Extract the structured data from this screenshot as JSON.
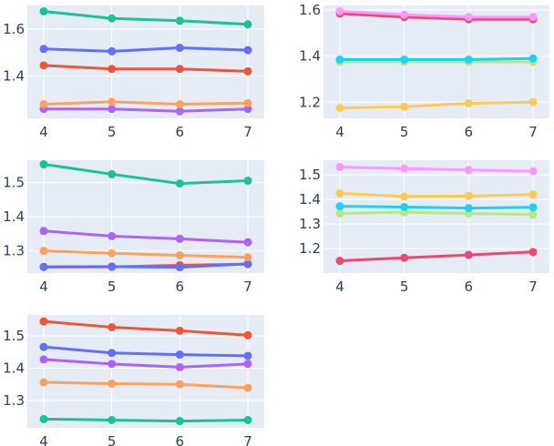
{
  "colors": {
    "background": "#ffffff",
    "plot_bg": "#e5ecf6",
    "grid": "#ffffff",
    "tick_text": "#2a3f5f"
  },
  "chart_data": [
    {
      "type": "line",
      "x": [
        4,
        5,
        6,
        7
      ],
      "ylim": [
        1.22,
        1.7
      ],
      "yticks": [
        1.4,
        1.6
      ],
      "ytick_labels": [
        "1.4",
        "1.6"
      ],
      "xtick_labels": [
        "4",
        "5",
        "6",
        "7"
      ],
      "series": [
        {
          "color": "#19c39a",
          "values": [
            1.675,
            1.645,
            1.635,
            1.62
          ]
        },
        {
          "color": "#636efa",
          "values": [
            1.515,
            1.505,
            1.52,
            1.51
          ]
        },
        {
          "color": "#ef553b",
          "values": [
            1.445,
            1.43,
            1.43,
            1.42
          ]
        },
        {
          "color": "#ffa15a",
          "values": [
            1.28,
            1.29,
            1.28,
            1.285
          ]
        },
        {
          "color": "#ab63fa",
          "values": [
            1.26,
            1.26,
            1.25,
            1.26
          ]
        }
      ]
    },
    {
      "type": "line",
      "x": [
        4,
        5,
        6,
        7
      ],
      "ylim": [
        1.13,
        1.62
      ],
      "yticks": [
        1.2,
        1.4,
        1.6
      ],
      "ytick_labels": [
        "1.2",
        "1.4",
        "1.6"
      ],
      "xtick_labels": [
        "4",
        "5",
        "6",
        "7"
      ],
      "series": [
        {
          "color": "#ff97ff",
          "values": [
            1.595,
            1.58,
            1.57,
            1.57
          ]
        },
        {
          "color": "#ef476f",
          "values": [
            1.585,
            1.57,
            1.56,
            1.56
          ]
        },
        {
          "color": "#19d3f3",
          "values": [
            1.385,
            1.385,
            1.385,
            1.39
          ]
        },
        {
          "color": "#b6e880",
          "values": [
            1.375,
            1.375,
            1.375,
            1.375
          ]
        },
        {
          "color": "#fecb52",
          "values": [
            1.175,
            1.18,
            1.195,
            1.2
          ]
        }
      ]
    },
    {
      "type": "line",
      "x": [
        4,
        5,
        6,
        7
      ],
      "ylim": [
        1.235,
        1.565
      ],
      "yticks": [
        1.3,
        1.4,
        1.5
      ],
      "ytick_labels": [
        "1.3",
        "1.4",
        "1.5"
      ],
      "xtick_labels": [
        "4",
        "5",
        "6",
        "7"
      ],
      "series": [
        {
          "color": "#19c39a",
          "values": [
            1.553,
            1.524,
            1.497,
            1.505
          ]
        },
        {
          "color": "#ab63fa",
          "values": [
            1.358,
            1.343,
            1.335,
            1.325
          ]
        },
        {
          "color": "#ffa15a",
          "values": [
            1.3,
            1.293,
            1.287,
            1.281
          ]
        },
        {
          "color": "#636efa",
          "values": [
            1.253,
            1.254,
            1.252,
            1.262
          ]
        },
        {
          "color": "#ef553b",
          "values": [
            1.253,
            1.253,
            1.258,
            1.261
          ]
        }
      ]
    },
    {
      "type": "line",
      "x": [
        4,
        5,
        6,
        7
      ],
      "ylim": [
        1.1,
        1.56
      ],
      "yticks": [
        1.2,
        1.3,
        1.4,
        1.5
      ],
      "ytick_labels": [
        "1.2",
        "1.3",
        "1.4",
        "1.5"
      ],
      "xtick_labels": [
        "4",
        "5",
        "6",
        "7"
      ],
      "series": [
        {
          "color": "#ff97ff",
          "values": [
            1.532,
            1.526,
            1.52,
            1.515
          ]
        },
        {
          "color": "#fecb52",
          "values": [
            1.425,
            1.412,
            1.414,
            1.42
          ]
        },
        {
          "color": "#19d3f3",
          "values": [
            1.372,
            1.369,
            1.365,
            1.368
          ]
        },
        {
          "color": "#b6e880",
          "values": [
            1.343,
            1.348,
            1.343,
            1.338
          ]
        },
        {
          "color": "#ef476f",
          "values": [
            1.15,
            1.162,
            1.174,
            1.186
          ]
        }
      ]
    },
    {
      "type": "line",
      "x": [
        4,
        5,
        6,
        7
      ],
      "ylim": [
        1.215,
        1.565
      ],
      "yticks": [
        1.3,
        1.4,
        1.5
      ],
      "ytick_labels": [
        "1.3",
        "1.4",
        "1.5"
      ],
      "xtick_labels": [
        "4",
        "5",
        "6",
        "7"
      ],
      "series": [
        {
          "color": "#ef553b",
          "values": [
            1.545,
            1.527,
            1.516,
            1.502
          ]
        },
        {
          "color": "#636efa",
          "values": [
            1.466,
            1.447,
            1.442,
            1.438
          ]
        },
        {
          "color": "#ab63fa",
          "values": [
            1.427,
            1.413,
            1.403,
            1.413
          ]
        },
        {
          "color": "#ffa15a",
          "values": [
            1.356,
            1.352,
            1.35,
            1.339
          ]
        },
        {
          "color": "#19c39a",
          "values": [
            1.242,
            1.239,
            1.236,
            1.239
          ]
        }
      ]
    }
  ]
}
